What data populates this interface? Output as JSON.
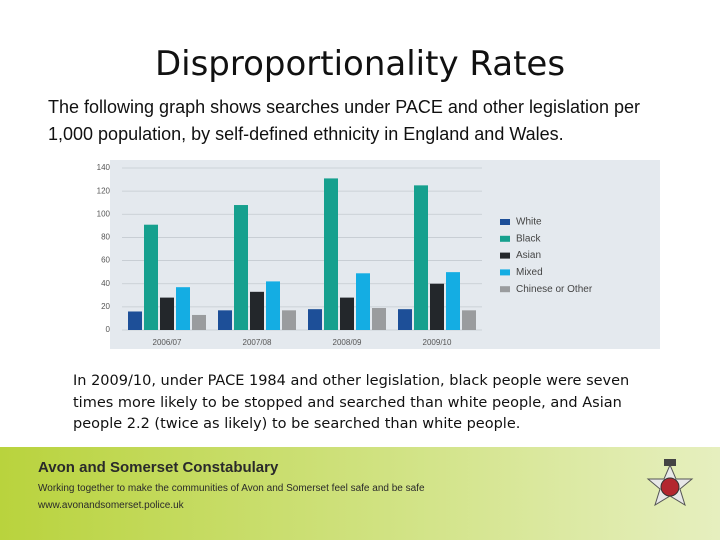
{
  "slide": {
    "title": "Disproportionality Rates",
    "intro": "The following graph shows searches under PACE and other legislation per 1,000 population, by self-defined ethnicity in England and Wales.",
    "note": "In 2009/10, under PACE 1984 and other legislation, black people were seven times more likely to be stopped and searched than white people, and Asian people 2.2 (twice as likely) to be searched than white people.",
    "footer": {
      "org": "Avon and Somerset Constabulary",
      "motto": "Working together to make the communities of Avon and Somerset feel safe and be safe",
      "url": "www.avonandsomerset.police.uk"
    }
  },
  "chart_data": {
    "type": "bar",
    "categories": [
      "2006/07",
      "2007/08",
      "2008/09",
      "2009/10"
    ],
    "series": [
      {
        "name": "White",
        "color": "#1d4f98",
        "values": [
          16,
          17,
          18,
          18
        ]
      },
      {
        "name": "Black",
        "color": "#16a08e",
        "values": [
          91,
          108,
          131,
          125
        ]
      },
      {
        "name": "Asian",
        "color": "#23272b",
        "values": [
          28,
          33,
          28,
          40
        ]
      },
      {
        "name": "Mixed",
        "color": "#14ade3",
        "values": [
          37,
          42,
          49,
          50
        ]
      },
      {
        "name": "Chinese or Other",
        "color": "#9a9c9e",
        "values": [
          13,
          17,
          19,
          17
        ]
      }
    ],
    "ylim": [
      0,
      140
    ],
    "yticks": [
      0,
      20,
      40,
      60,
      80,
      100,
      120,
      140
    ],
    "grid": true,
    "legend": "right"
  }
}
